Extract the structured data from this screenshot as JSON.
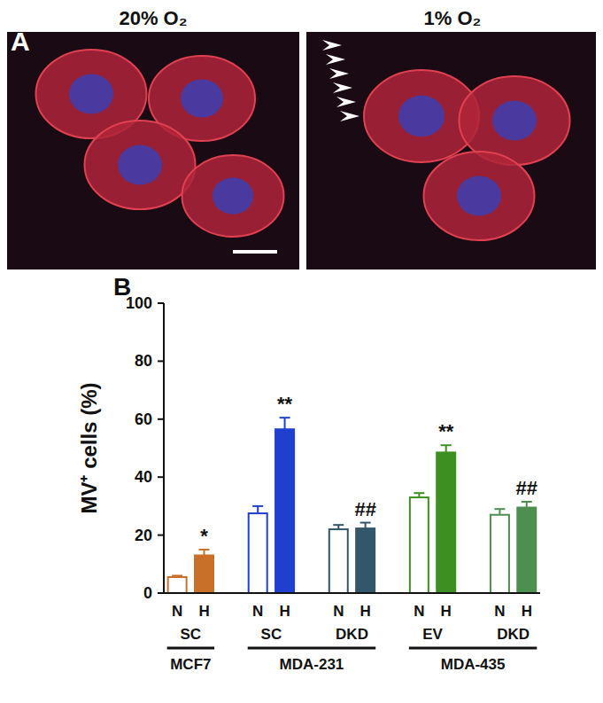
{
  "panel_a": {
    "label": "A",
    "images": [
      "20% O₂",
      "1% O₂"
    ]
  },
  "chart_data": {
    "type": "bar",
    "panel_label": "B",
    "y_label": "MV⁺ cells (%)",
    "categories": [
      "N",
      "H",
      "N",
      "H",
      "N",
      "H",
      "N",
      "H",
      "N",
      "H"
    ],
    "values": [
      5.5,
      13,
      27.5,
      56.5,
      22,
      22.3,
      33,
      48.5,
      27,
      29.5
    ],
    "errors": [
      0.5,
      2,
      2.5,
      4,
      1.5,
      2,
      1.5,
      2.5,
      2,
      2
    ],
    "colors": [
      "#c8702a",
      "#c8702a",
      "#1f3fcf",
      "#1f3fcf",
      "#34566b",
      "#34566b",
      "#3d8f22",
      "#3d8f22",
      "#4d8f4f",
      "#4d8f4f"
    ],
    "groups": [
      "SC",
      "SC",
      "DKD",
      "EV",
      "DKD"
    ],
    "cell_lines": [
      {
        "label": "MCF7",
        "groups": 1
      },
      {
        "label": "MDA-231",
        "groups": 2
      },
      {
        "label": "MDA-435",
        "groups": 2
      }
    ],
    "annotations": [
      {
        "index": 1,
        "text": "*"
      },
      {
        "index": 3,
        "text": "**"
      },
      {
        "index": 5,
        "text": "##"
      },
      {
        "index": 7,
        "text": "**"
      },
      {
        "index": 9,
        "text": "##"
      }
    ],
    "ylim": [
      0,
      100
    ],
    "yticks": [
      0,
      20,
      40,
      60,
      80,
      100
    ],
    "grid": false
  }
}
